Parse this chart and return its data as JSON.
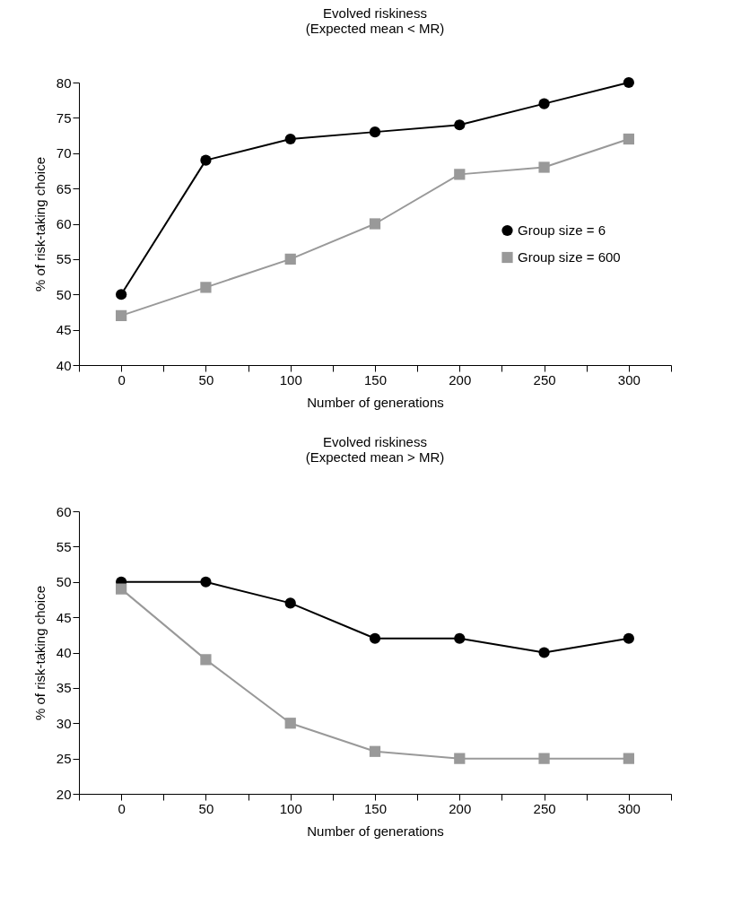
{
  "chart_data": [
    {
      "type": "line",
      "title": "Evolved riskiness",
      "subtitle": "(Expected mean < MR)",
      "xlabel": "Number of generations",
      "ylabel": "% of risk-taking choice",
      "x": [
        0,
        50,
        100,
        150,
        200,
        250,
        300
      ],
      "series": [
        {
          "name": "Group size = 6",
          "color": "#000000",
          "marker": "circle",
          "values": [
            50,
            69,
            72,
            73,
            74,
            77,
            80
          ]
        },
        {
          "name": "Group size = 600",
          "color": "#999999",
          "marker": "square",
          "values": [
            47,
            51,
            55,
            60,
            67,
            68,
            72
          ]
        }
      ],
      "xlim": [
        -25,
        325
      ],
      "xticks": [
        {
          "value": -25,
          "label": null
        },
        0,
        {
          "value": 25,
          "label": null
        },
        50,
        {
          "value": 75,
          "label": null
        },
        100,
        {
          "value": 125,
          "label": null
        },
        150,
        {
          "value": 175,
          "label": null
        },
        200,
        {
          "value": 225,
          "label": null
        },
        250,
        {
          "value": 275,
          "label": null
        },
        300,
        {
          "value": 325,
          "label": null
        }
      ],
      "ylim": [
        40,
        80
      ],
      "yticks": [
        40,
        45,
        50,
        55,
        60,
        65,
        70,
        75,
        80
      ],
      "legend": "right"
    },
    {
      "type": "line",
      "title": "Evolved riskiness",
      "subtitle": "(Expected mean > MR)",
      "xlabel": "Number of generations",
      "ylabel": "% of risk-taking choice",
      "x": [
        0,
        50,
        100,
        150,
        200,
        250,
        300
      ],
      "series": [
        {
          "name": "Group size = 6",
          "color": "#000000",
          "marker": "circle",
          "values": [
            50,
            50,
            47,
            42,
            42,
            40,
            42
          ]
        },
        {
          "name": "Group size = 600",
          "color": "#999999",
          "marker": "square",
          "values": [
            49,
            39,
            30,
            26,
            25,
            25,
            25
          ]
        }
      ],
      "xlim": [
        -25,
        325
      ],
      "xticks": [
        {
          "value": -25,
          "label": null
        },
        0,
        {
          "value": 25,
          "label": null
        },
        50,
        {
          "value": 75,
          "label": null
        },
        100,
        {
          "value": 125,
          "label": null
        },
        150,
        {
          "value": 175,
          "label": null
        },
        200,
        {
          "value": 225,
          "label": null
        },
        250,
        {
          "value": 275,
          "label": null
        },
        300,
        {
          "value": 325,
          "label": null
        }
      ],
      "ylim": [
        20,
        60
      ],
      "yticks": [
        20,
        25,
        30,
        35,
        40,
        45,
        50,
        55,
        60
      ],
      "legend": "right"
    }
  ]
}
